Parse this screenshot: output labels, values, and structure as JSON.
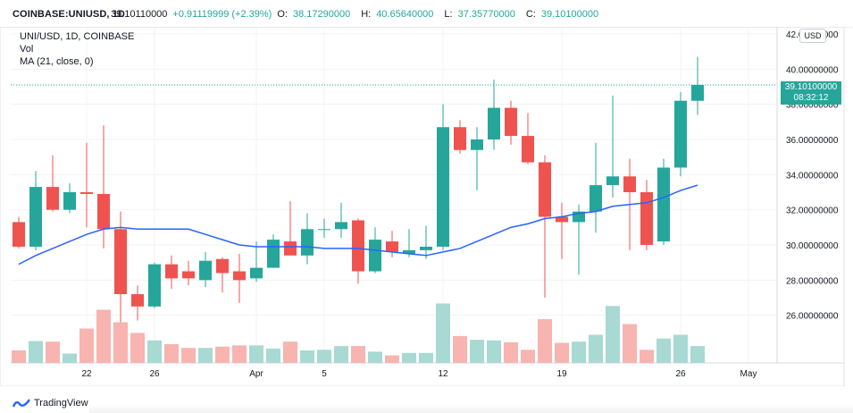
{
  "header": {
    "symbol_label": "COINBASE:UNIUSD, 1D",
    "last": "39.10110000",
    "change": "+0.91119999 (+2.39%)",
    "o_label": "O:",
    "o_value": "38.17290000",
    "h_label": "H:",
    "h_value": "40.65640000",
    "l_label": "L:",
    "l_value": "37.35770000",
    "c_label": "C:",
    "c_value": "39.10100000"
  },
  "legend": {
    "title": "UNI/USD, 1D, COINBASE",
    "volume": "Vol",
    "ma": "MA (21, close, 0)"
  },
  "price_axis": {
    "currency_badge": "USD",
    "last_price": "39.10100000",
    "countdown": "08:32:12"
  },
  "branding": {
    "logo_text": "TradingView",
    "logo_icon": "tradingview-logo-icon"
  },
  "colors": {
    "up": "#26a69a",
    "down": "#ef5350",
    "ma": "#2962ff",
    "vol_up": "#a8d9d3",
    "vol_down": "#f7b4b0"
  },
  "chart_data": {
    "type": "candlestick",
    "ylim": [
      24,
      42
    ],
    "yticks": [
      "26.00000000",
      "28.00000000",
      "30.00000000",
      "32.00000000",
      "34.00000000",
      "36.00000000",
      "38.00000000",
      "40.00000000",
      "42.00000000"
    ],
    "ytick_values": [
      26,
      28,
      30,
      32,
      34,
      36,
      38,
      40,
      42
    ],
    "xticks": [
      "22",
      "26",
      "Apr",
      "5",
      "12",
      "19",
      "26",
      "May"
    ],
    "xtick_index": [
      4,
      8,
      14,
      18,
      25,
      32,
      39,
      43
    ],
    "last_price": 39.101,
    "candles": [
      {
        "o": 31.3,
        "h": 31.6,
        "l": 29.8,
        "c": 29.9
      },
      {
        "o": 29.9,
        "h": 34.2,
        "l": 29.7,
        "c": 33.3
      },
      {
        "o": 33.3,
        "h": 35.1,
        "l": 31.9,
        "c": 32.0
      },
      {
        "o": 32.0,
        "h": 33.5,
        "l": 31.8,
        "c": 33.0
      },
      {
        "o": 33.0,
        "h": 35.8,
        "l": 31.0,
        "c": 32.9
      },
      {
        "o": 32.9,
        "h": 36.8,
        "l": 29.8,
        "c": 30.9
      },
      {
        "o": 30.9,
        "h": 31.9,
        "l": 25.6,
        "c": 27.2
      },
      {
        "o": 27.2,
        "h": 27.7,
        "l": 25.7,
        "c": 26.5
      },
      {
        "o": 26.5,
        "h": 29.0,
        "l": 26.4,
        "c": 28.9
      },
      {
        "o": 28.9,
        "h": 29.4,
        "l": 27.5,
        "c": 28.1
      },
      {
        "o": 28.5,
        "h": 29.1,
        "l": 27.7,
        "c": 28.1
      },
      {
        "o": 28.0,
        "h": 29.6,
        "l": 27.6,
        "c": 29.1
      },
      {
        "o": 29.2,
        "h": 29.3,
        "l": 27.3,
        "c": 28.4
      },
      {
        "o": 28.5,
        "h": 29.5,
        "l": 26.7,
        "c": 28.0
      },
      {
        "o": 28.1,
        "h": 30.2,
        "l": 27.9,
        "c": 28.7
      },
      {
        "o": 28.7,
        "h": 30.6,
        "l": 28.7,
        "c": 30.3
      },
      {
        "o": 30.2,
        "h": 32.5,
        "l": 29.4,
        "c": 29.4
      },
      {
        "o": 29.4,
        "h": 31.8,
        "l": 28.9,
        "c": 30.9
      },
      {
        "o": 30.9,
        "h": 31.5,
        "l": 30.4,
        "c": 30.9
      },
      {
        "o": 30.9,
        "h": 32.4,
        "l": 30.4,
        "c": 31.3
      },
      {
        "o": 31.4,
        "h": 31.5,
        "l": 27.8,
        "c": 28.5
      },
      {
        "o": 28.5,
        "h": 31.0,
        "l": 28.4,
        "c": 30.3
      },
      {
        "o": 30.2,
        "h": 30.8,
        "l": 29.3,
        "c": 29.6
      },
      {
        "o": 29.5,
        "h": 30.9,
        "l": 29.3,
        "c": 29.7
      },
      {
        "o": 29.7,
        "h": 31.1,
        "l": 29.2,
        "c": 29.9
      },
      {
        "o": 29.9,
        "h": 38.0,
        "l": 29.7,
        "c": 36.7
      },
      {
        "o": 36.7,
        "h": 37.1,
        "l": 35.2,
        "c": 35.4
      },
      {
        "o": 35.4,
        "h": 36.7,
        "l": 33.1,
        "c": 36.0
      },
      {
        "o": 36.0,
        "h": 39.4,
        "l": 35.4,
        "c": 37.8
      },
      {
        "o": 37.8,
        "h": 38.2,
        "l": 35.7,
        "c": 36.2
      },
      {
        "o": 36.2,
        "h": 37.5,
        "l": 34.6,
        "c": 34.7
      },
      {
        "o": 34.7,
        "h": 35.1,
        "l": 27.0,
        "c": 31.6
      },
      {
        "o": 31.6,
        "h": 32.4,
        "l": 29.2,
        "c": 31.3
      },
      {
        "o": 31.3,
        "h": 32.3,
        "l": 28.3,
        "c": 31.9
      },
      {
        "o": 31.9,
        "h": 35.8,
        "l": 30.7,
        "c": 33.4
      },
      {
        "o": 33.4,
        "h": 38.5,
        "l": 32.7,
        "c": 33.9
      },
      {
        "o": 33.9,
        "h": 34.9,
        "l": 29.7,
        "c": 33.0
      },
      {
        "o": 33.0,
        "h": 33.7,
        "l": 29.7,
        "c": 30.0
      },
      {
        "o": 30.2,
        "h": 34.9,
        "l": 30.0,
        "c": 34.4
      },
      {
        "o": 34.4,
        "h": 38.7,
        "l": 33.9,
        "c": 38.2
      },
      {
        "o": 38.2,
        "h": 40.7,
        "l": 37.4,
        "c": 39.1
      }
    ],
    "volume_heights": [
      0.2,
      0.35,
      0.34,
      0.15,
      0.55,
      0.85,
      0.65,
      0.48,
      0.36,
      0.3,
      0.24,
      0.24,
      0.26,
      0.28,
      0.28,
      0.23,
      0.34,
      0.2,
      0.21,
      0.27,
      0.27,
      0.18,
      0.12,
      0.16,
      0.16,
      0.95,
      0.43,
      0.37,
      0.36,
      0.33,
      0.21,
      0.7,
      0.32,
      0.34,
      0.45,
      0.91,
      0.62,
      0.21,
      0.39,
      0.45,
      0.27
    ],
    "ma": [
      28.9,
      29.4,
      29.8,
      30.2,
      30.6,
      30.9,
      31.0,
      30.9,
      30.9,
      30.9,
      30.9,
      30.6,
      30.3,
      30.0,
      29.9,
      29.9,
      29.9,
      29.9,
      29.8,
      29.8,
      29.8,
      29.7,
      29.6,
      29.5,
      29.4,
      29.6,
      29.8,
      30.2,
      30.6,
      31.0,
      31.2,
      31.5,
      31.6,
      31.8,
      31.9,
      32.2,
      32.3,
      32.4,
      32.7,
      33.1,
      33.4
    ]
  }
}
